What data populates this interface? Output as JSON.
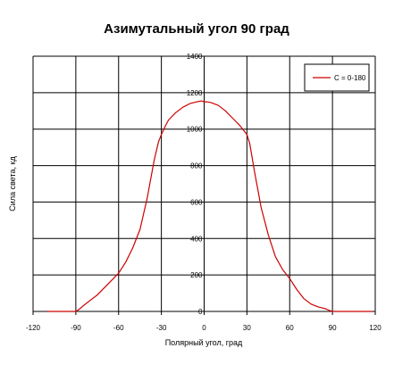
{
  "chart_data": {
    "type": "line",
    "title": "Азимутальный угол 90 град",
    "xlabel": "Полярный угол, град",
    "ylabel": "Сила света, кд",
    "xlim": [
      -120,
      120
    ],
    "ylim": [
      0,
      1400
    ],
    "x_ticks": [
      -120,
      -90,
      -60,
      -30,
      0,
      30,
      60,
      90,
      120
    ],
    "y_ticks": [
      0,
      200,
      400,
      600,
      800,
      1000,
      1200,
      1400
    ],
    "grid": true,
    "legend": {
      "placement": "top-right"
    },
    "series": [
      {
        "name": "C = 0-180",
        "color": "#cc0000",
        "x": [
          -110,
          -100,
          -95,
          -90,
          -88,
          -85,
          -80,
          -75,
          -70,
          -65,
          -60,
          -55,
          -50,
          -45,
          -40,
          -35,
          -32,
          -30,
          -27,
          -25,
          -20,
          -15,
          -10,
          -5,
          -2,
          0,
          2,
          5,
          10,
          15,
          20,
          25,
          28,
          30,
          32,
          35,
          40,
          45,
          50,
          55,
          60,
          65,
          70,
          75,
          80,
          85,
          88,
          90,
          95,
          100,
          110,
          118
        ],
        "y": [
          0,
          0,
          0,
          0,
          10,
          30,
          60,
          90,
          130,
          170,
          210,
          270,
          350,
          450,
          620,
          830,
          930,
          970,
          1020,
          1050,
          1090,
          1120,
          1140,
          1150,
          1155,
          1150,
          1150,
          1145,
          1130,
          1100,
          1060,
          1020,
          990,
          970,
          920,
          780,
          570,
          420,
          300,
          230,
          180,
          120,
          70,
          40,
          25,
          15,
          5,
          0,
          0,
          0,
          0,
          0
        ]
      }
    ]
  }
}
